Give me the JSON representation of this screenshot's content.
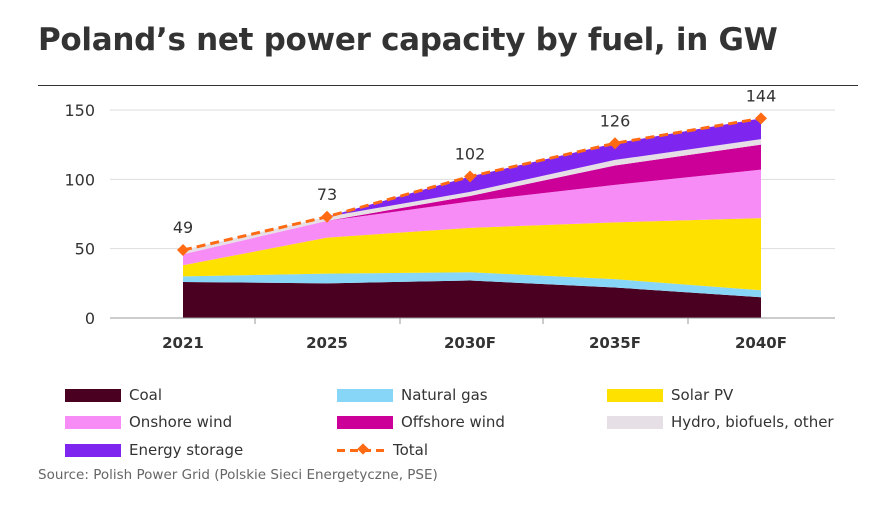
{
  "title": "Poland’s net power capacity by fuel, in GW",
  "source": "Source: Polish Power Grid (Polskie Sieci Energetyczne, PSE)",
  "chart_data": {
    "type": "area",
    "stacked": true,
    "title": "Poland’s net power capacity by fuel, in GW",
    "categories": [
      "2021",
      "2025",
      "2030F",
      "2035F",
      "2040F"
    ],
    "ylim": [
      0,
      150
    ],
    "yticks": [
      0,
      50,
      100,
      150
    ],
    "grid": true,
    "legend_position": "bottom",
    "series": [
      {
        "name": "Coal",
        "color": "#4a0020",
        "values": [
          26,
          25,
          27,
          22,
          15
        ]
      },
      {
        "name": "Natural gas",
        "color": "#87d5f7",
        "values": [
          4,
          7,
          6,
          6,
          5
        ]
      },
      {
        "name": "Solar PV",
        "color": "#ffe100",
        "values": [
          8,
          26,
          32,
          41,
          52
        ]
      },
      {
        "name": "Onshore wind",
        "color": "#f78cf7",
        "values": [
          8,
          12,
          19,
          27,
          35
        ]
      },
      {
        "name": "Offshore wind",
        "color": "#cc0099",
        "values": [
          0,
          0,
          4,
          14,
          18
        ]
      },
      {
        "name": "Hydro, biofuels, other",
        "color": "#e6e0e6",
        "values": [
          3,
          3,
          3,
          4,
          4
        ]
      },
      {
        "name": "Energy storage",
        "color": "#7f25f0",
        "values": [
          0,
          0,
          11,
          12,
          15
        ]
      }
    ],
    "total": {
      "name": "Total",
      "color": "#ff6a13",
      "values": [
        49,
        73,
        102,
        126,
        144
      ],
      "labels": [
        "49",
        "73",
        "102",
        "126",
        "144"
      ]
    }
  }
}
